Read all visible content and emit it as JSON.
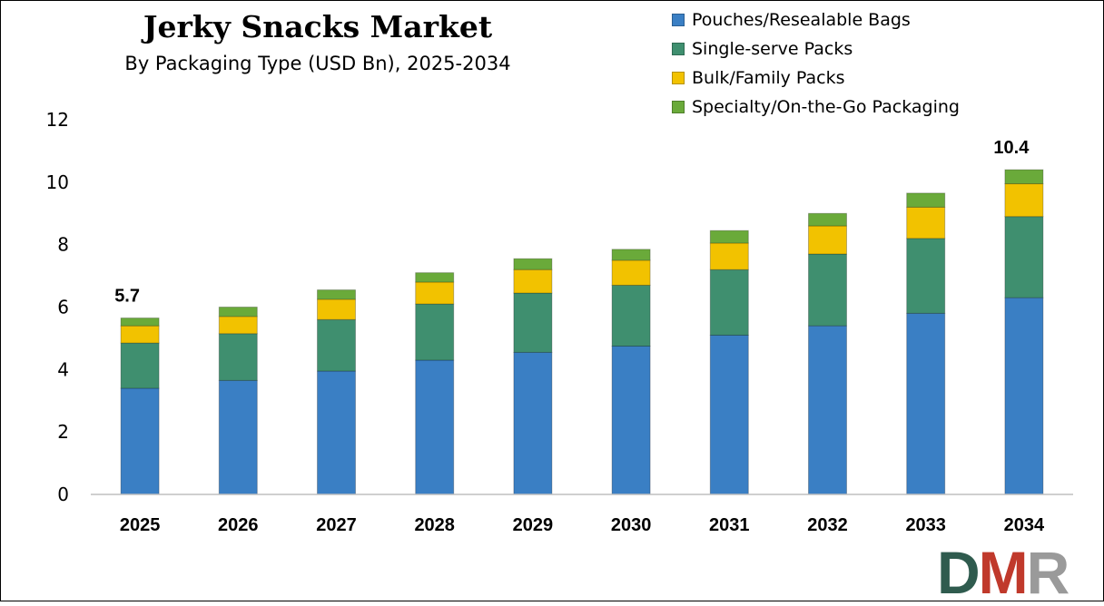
{
  "chart_data": {
    "type": "bar",
    "stacked": true,
    "title": "Jerky Snacks Market",
    "subtitle": "By Packaging Type (USD Bn), 2025-2034",
    "categories": [
      "2025",
      "2026",
      "2027",
      "2028",
      "2029",
      "2030",
      "2031",
      "2032",
      "2033",
      "2034"
    ],
    "series": [
      {
        "name": "Pouches/Resealable Bags",
        "color": "#3a7fc4",
        "values": [
          3.4,
          3.65,
          3.95,
          4.3,
          4.55,
          4.75,
          5.1,
          5.4,
          5.8,
          6.3
        ]
      },
      {
        "name": "Single-serve Packs",
        "color": "#3f8f6f",
        "values": [
          1.45,
          1.5,
          1.65,
          1.8,
          1.9,
          1.95,
          2.1,
          2.3,
          2.4,
          2.6
        ]
      },
      {
        "name": "Bulk/Family Packs",
        "color": "#f2c200",
        "values": [
          0.55,
          0.55,
          0.65,
          0.7,
          0.75,
          0.8,
          0.85,
          0.9,
          1.0,
          1.05
        ]
      },
      {
        "name": "Specialty/On-the-Go Packaging",
        "color": "#6aaa3a",
        "values": [
          0.25,
          0.3,
          0.3,
          0.3,
          0.35,
          0.35,
          0.4,
          0.4,
          0.45,
          0.45
        ]
      }
    ],
    "ylim": [
      0,
      12
    ],
    "yticks": [
      0,
      2,
      4,
      6,
      8,
      10,
      12
    ],
    "xlabel": "",
    "ylabel": "",
    "grid": false,
    "legend_position": "top-right",
    "data_labels": [
      {
        "category": "2025",
        "text": "5.7"
      },
      {
        "category": "2034",
        "text": "10.4"
      }
    ]
  },
  "logo": {
    "d": "D",
    "m": "M",
    "r": "R"
  }
}
